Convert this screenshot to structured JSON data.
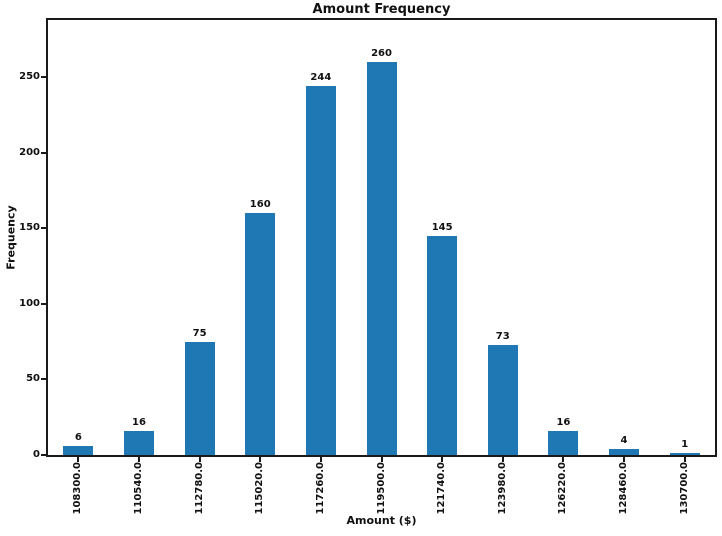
{
  "chart_data": {
    "type": "bar",
    "title": "Amount Frequency",
    "xlabel": "Amount ($)",
    "ylabel": "Frequency",
    "categories": [
      "108300.0",
      "110540.0",
      "112780.0",
      "115020.0",
      "117260.0",
      "119500.0",
      "121740.0",
      "123980.0",
      "126220.0",
      "128460.0",
      "130700.0"
    ],
    "values": [
      6,
      16,
      75,
      160,
      244,
      260,
      145,
      73,
      16,
      4,
      1
    ],
    "value_labels_shown": true,
    "yticks": [
      0,
      50,
      100,
      150,
      200,
      250
    ],
    "ylim": [
      0,
      288
    ],
    "grid": false,
    "x_tick_rotation": 90,
    "bar_color": "#1f77b4",
    "axis_color": "#1a1a1a",
    "text_color": "#111111",
    "background_color": "#ffffff"
  }
}
